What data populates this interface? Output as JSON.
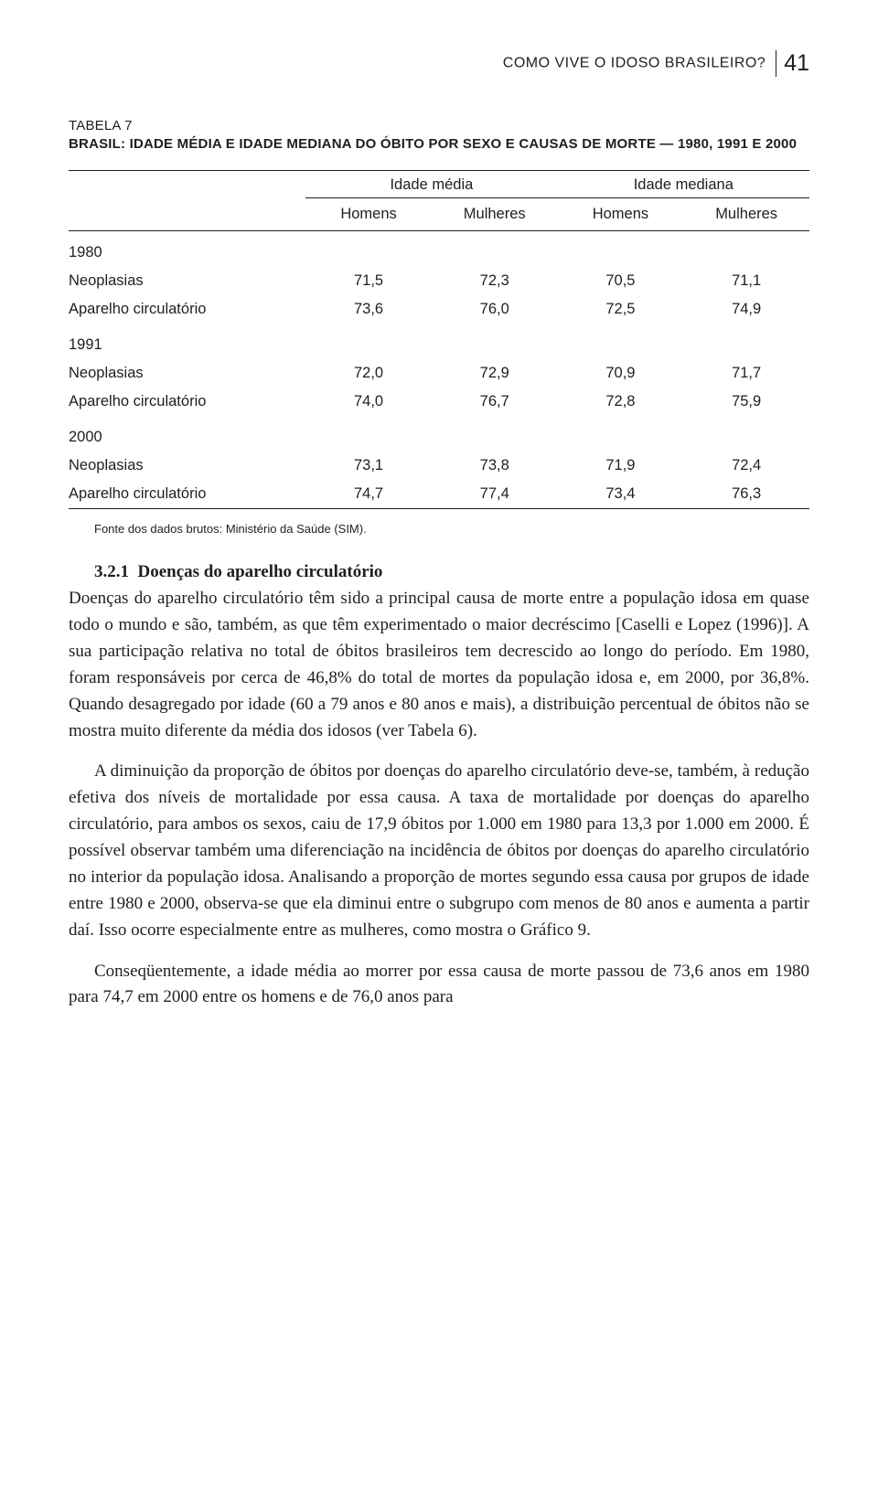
{
  "running_head": {
    "title": "COMO VIVE O IDOSO BRASILEIRO?",
    "page": "41"
  },
  "table": {
    "caption": "TABELA 7",
    "title": "BRASIL: IDADE MÉDIA E IDADE MEDIANA DO ÓBITO POR SEXO E CAUSAS DE MORTE — 1980, 1991 E 2000",
    "group_headers": [
      "Idade média",
      "Idade mediana"
    ],
    "sub_headers": [
      "Homens",
      "Mulheres",
      "Homens",
      "Mulheres"
    ],
    "blocks": [
      {
        "year": "1980",
        "rows": [
          {
            "label": "Neoplasias",
            "v": [
              "71,5",
              "72,3",
              "70,5",
              "71,1"
            ]
          },
          {
            "label": "Aparelho circulatório",
            "v": [
              "73,6",
              "76,0",
              "72,5",
              "74,9"
            ]
          }
        ]
      },
      {
        "year": "1991",
        "rows": [
          {
            "label": "Neoplasias",
            "v": [
              "72,0",
              "72,9",
              "70,9",
              "71,7"
            ]
          },
          {
            "label": "Aparelho circulatório",
            "v": [
              "74,0",
              "76,7",
              "72,8",
              "75,9"
            ]
          }
        ]
      },
      {
        "year": "2000",
        "rows": [
          {
            "label": "Neoplasias",
            "v": [
              "73,1",
              "73,8",
              "71,9",
              "72,4"
            ]
          },
          {
            "label": "Aparelho circulatório",
            "v": [
              "74,7",
              "77,4",
              "73,4",
              "76,3"
            ]
          }
        ]
      }
    ],
    "source": "Fonte dos dados brutos: Ministério da Saúde (SIM)."
  },
  "section": {
    "number": "3.2.1",
    "title": "Doenças do aparelho circulatório"
  },
  "paragraphs": {
    "p1": "Doenças do aparelho circulatório têm sido a principal causa de morte entre a população idosa em quase todo o mundo e são, também, as que têm experimentado o maior decréscimo [Caselli e Lopez (1996)]. A sua participação relativa no total de óbitos brasileiros tem decrescido ao longo do período. Em 1980, foram responsáveis por cerca de 46,8% do total de mortes da população idosa e, em 2000, por 36,8%. Quando desagregado por idade (60 a 79 anos e 80 anos e mais), a distribuição percentual de óbitos não se mostra muito diferente da média dos idosos (ver Tabela 6).",
    "p2": "A diminuição da proporção de óbitos por doenças do aparelho circulatório deve-se, também, à redução efetiva dos níveis de mortalidade por essa causa. A taxa de mortalidade por doenças do aparelho circulatório, para ambos os sexos, caiu de 17,9 óbitos por 1.000 em 1980 para 13,3 por 1.000 em 2000. É possível observar também uma diferenciação na incidência de óbitos por doenças do aparelho circulatório no interior da população idosa. Analisando a proporção de mortes segundo essa causa por grupos de idade entre 1980 e 2000, observa-se que ela diminui entre o subgrupo com menos de 80 anos e aumenta a partir daí. Isso ocorre especialmente entre as mulheres, como mostra o Gráfico 9.",
    "p3": "Conseqüentemente, a idade média ao morrer por essa causa de morte passou de 73,6 anos em 1980 para 74,7 em 2000 entre os homens e de 76,0 anos para"
  }
}
